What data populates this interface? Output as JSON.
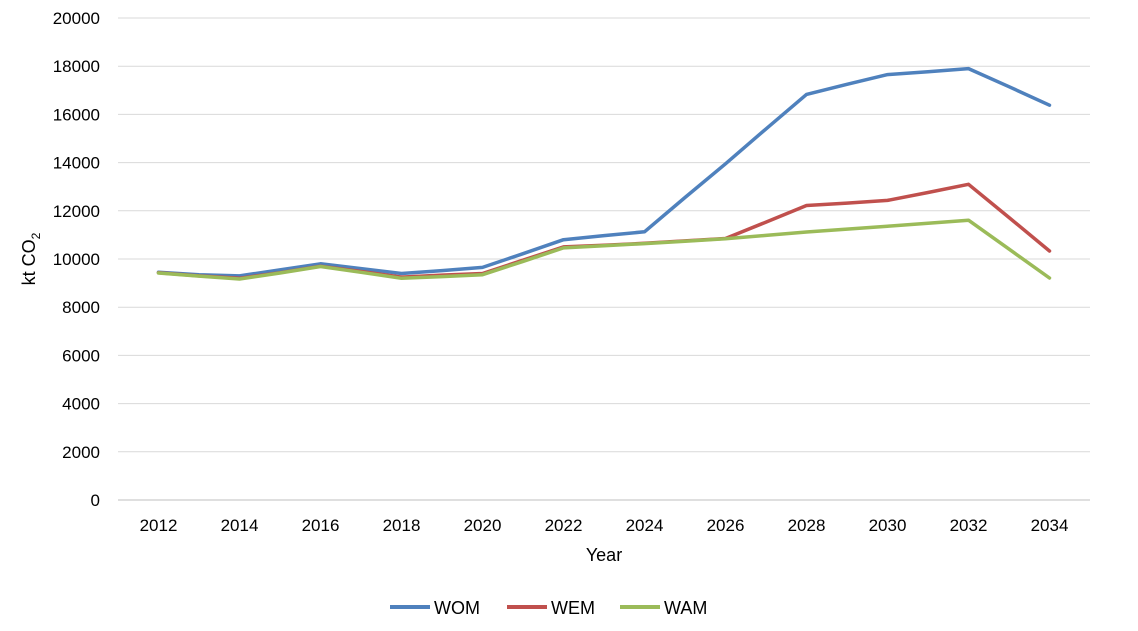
{
  "chart_data": {
    "type": "line",
    "title": "",
    "xlabel": "Year",
    "ylabel": {
      "main": "kt CO",
      "subscript": "2"
    },
    "x": [
      2012,
      2013,
      2014,
      2015,
      2016,
      2017,
      2018,
      2019,
      2020,
      2021,
      2022,
      2023,
      2024,
      2025,
      2026,
      2027,
      2028,
      2029,
      2030,
      2031,
      2032,
      2033,
      2034
    ],
    "xticks": [
      "2012",
      "2014",
      "2016",
      "2018",
      "2020",
      "2022",
      "2024",
      "2026",
      "2028",
      "2030",
      "2032",
      "2034"
    ],
    "yticks": [
      "0",
      "2000",
      "4000",
      "6000",
      "8000",
      "10000",
      "12000",
      "14000",
      "16000",
      "18000",
      "20000"
    ],
    "ylim": [
      0,
      20000
    ],
    "grid": true,
    "legend_position": "bottom",
    "series": [
      {
        "name": "WOM",
        "color": "#4F81BD",
        "values": [
          9450,
          9350,
          9300,
          9550,
          9800,
          9600,
          9400,
          9520,
          9650,
          10220,
          10800,
          10970,
          11130,
          12550,
          13950,
          15400,
          16830,
          17250,
          17650,
          17770,
          17900,
          17150,
          16380
        ]
      },
      {
        "name": "WEM",
        "color": "#C0504D",
        "values": [
          9430,
          9300,
          9200,
          9430,
          9700,
          9480,
          9250,
          9330,
          9400,
          9950,
          10500,
          10570,
          10650,
          10750,
          10850,
          11530,
          12220,
          12320,
          12430,
          12760,
          13100,
          11720,
          10330
        ]
      },
      {
        "name": "WAM",
        "color": "#9BBB59",
        "values": [
          9420,
          9290,
          9170,
          9420,
          9690,
          9450,
          9200,
          9270,
          9350,
          9900,
          10460,
          10550,
          10640,
          10740,
          10840,
          10980,
          11120,
          11240,
          11360,
          11480,
          11610,
          10410,
          9210
        ]
      }
    ]
  }
}
